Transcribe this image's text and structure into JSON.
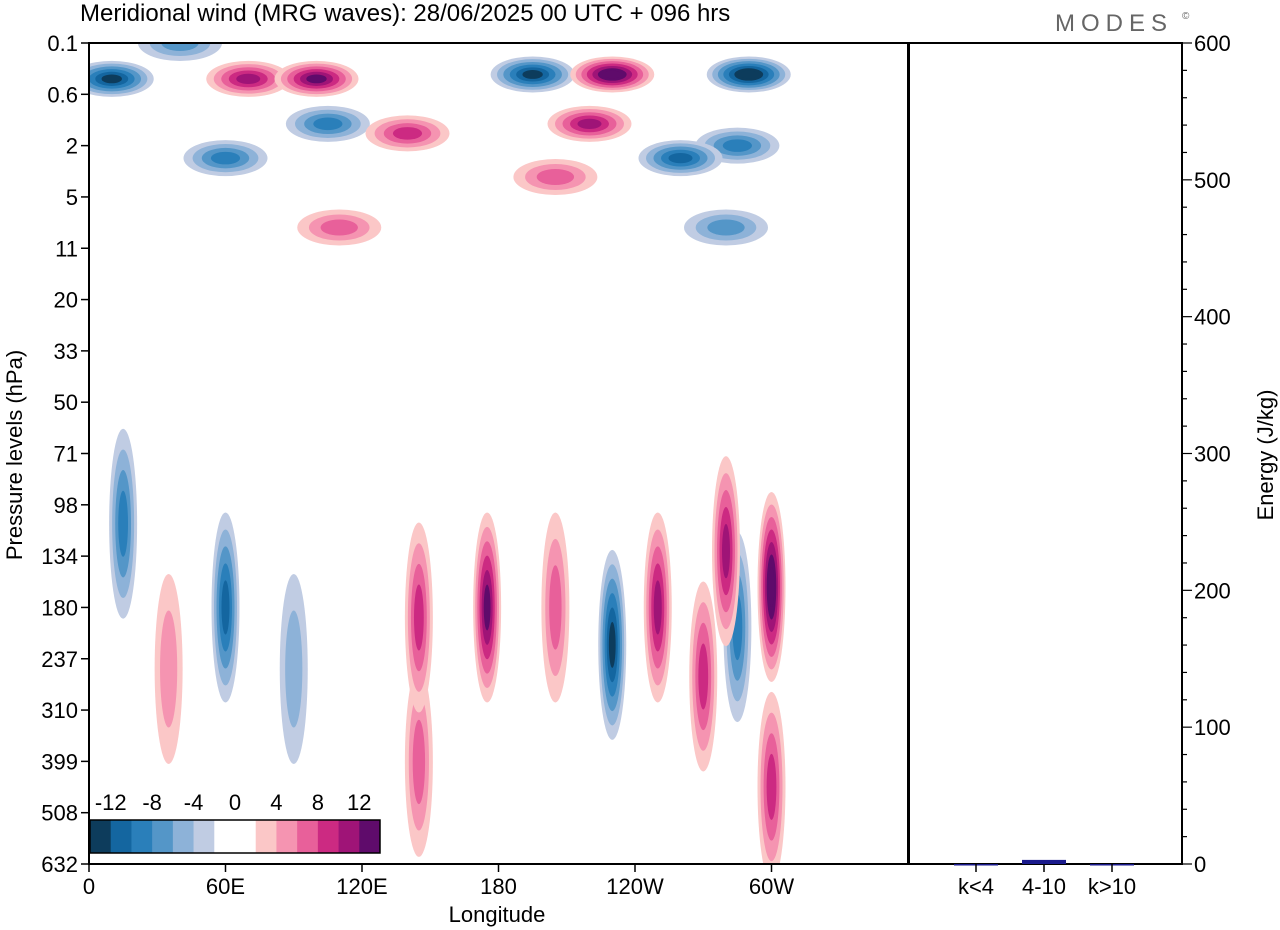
{
  "title": "Meridional wind (MRG waves):  28/06/2025  00 UTC  + 096 hrs",
  "brand": "MODES",
  "brand_mark": "©",
  "chart_data": [
    {
      "type": "heatmap",
      "xlabel": "Longitude",
      "ylabel": "Pressure levels (hPa)",
      "x_ticks": [
        "0",
        "60E",
        "120E",
        "180",
        "120W",
        "60W"
      ],
      "y_ticks": [
        "0.1",
        "0.6",
        "2",
        "5",
        "11",
        "20",
        "33",
        "50",
        "71",
        "98",
        "134",
        "180",
        "237",
        "310",
        "399",
        "508",
        "632"
      ],
      "colorbar": {
        "labels": [
          "-12",
          "-8",
          "-4",
          "0",
          "4",
          "8",
          "12"
        ],
        "levels": [
          -14,
          -12,
          -10,
          -8,
          -6,
          -4,
          -2,
          0,
          2,
          4,
          6,
          8,
          10,
          12,
          14
        ],
        "colors": [
          "#0d3c5c",
          "#1466a0",
          "#2a7fba",
          "#5496c8",
          "#8db2d8",
          "#c0cce3",
          "#ffffff",
          "#ffffff",
          "#fbc7c7",
          "#f594b1",
          "#e8609a",
          "#cc2a82",
          "#9f1477",
          "#5f0b6b"
        ]
      },
      "features": [
        {
          "lon": 10,
          "lev": 0.35,
          "value": -12
        },
        {
          "lon": 40,
          "lev": 0.1,
          "value": -6
        },
        {
          "lon": 70,
          "lev": 0.35,
          "value": 10
        },
        {
          "lon": 100,
          "lev": 0.35,
          "value": 12
        },
        {
          "lon": 105,
          "lev": 1.2,
          "value": -8
        },
        {
          "lon": 60,
          "lev": 2.5,
          "value": -8
        },
        {
          "lon": 140,
          "lev": 1.5,
          "value": 8
        },
        {
          "lon": 195,
          "lev": 0.3,
          "value": -12
        },
        {
          "lon": 230,
          "lev": 0.3,
          "value": 14
        },
        {
          "lon": 220,
          "lev": 1.2,
          "value": 10
        },
        {
          "lon": 260,
          "lev": 2.5,
          "value": -10
        },
        {
          "lon": 285,
          "lev": 2.0,
          "value": -8
        },
        {
          "lon": 290,
          "lev": 0.3,
          "value": -14
        },
        {
          "lon": 205,
          "lev": 3.5,
          "value": 6
        },
        {
          "lon": 110,
          "lev": 8,
          "value": 6
        },
        {
          "lon": 280,
          "lev": 8,
          "value": -6
        },
        {
          "lon": 15,
          "lev": 110,
          "value": -8
        },
        {
          "lon": 35,
          "lev": 250,
          "value": 4
        },
        {
          "lon": 60,
          "lev": 180,
          "value": -10
        },
        {
          "lon": 90,
          "lev": 250,
          "value": -4
        },
        {
          "lon": 145,
          "lev": 400,
          "value": 6
        },
        {
          "lon": 145,
          "lev": 190,
          "value": 8
        },
        {
          "lon": 175,
          "lev": 180,
          "value": 12
        },
        {
          "lon": 205,
          "lev": 180,
          "value": 6
        },
        {
          "lon": 230,
          "lev": 220,
          "value": -12
        },
        {
          "lon": 250,
          "lev": 180,
          "value": 10
        },
        {
          "lon": 270,
          "lev": 260,
          "value": 8
        },
        {
          "lon": 285,
          "lev": 200,
          "value": -8
        },
        {
          "lon": 280,
          "lev": 130,
          "value": 10
        },
        {
          "lon": 300,
          "lev": 160,
          "value": 14
        },
        {
          "lon": 300,
          "lev": 450,
          "value": 8
        }
      ]
    },
    {
      "type": "bar",
      "categories": [
        "k<4",
        "4-10",
        "k>10"
      ],
      "values": [
        0,
        3,
        0
      ],
      "ylabel": "Energy (J/kg)",
      "ylim": [
        0,
        600
      ],
      "y_ticks": [
        "0",
        "100",
        "200",
        "300",
        "400",
        "500",
        "600"
      ],
      "colors": {
        "bar": "#1a1a8c"
      }
    }
  ]
}
